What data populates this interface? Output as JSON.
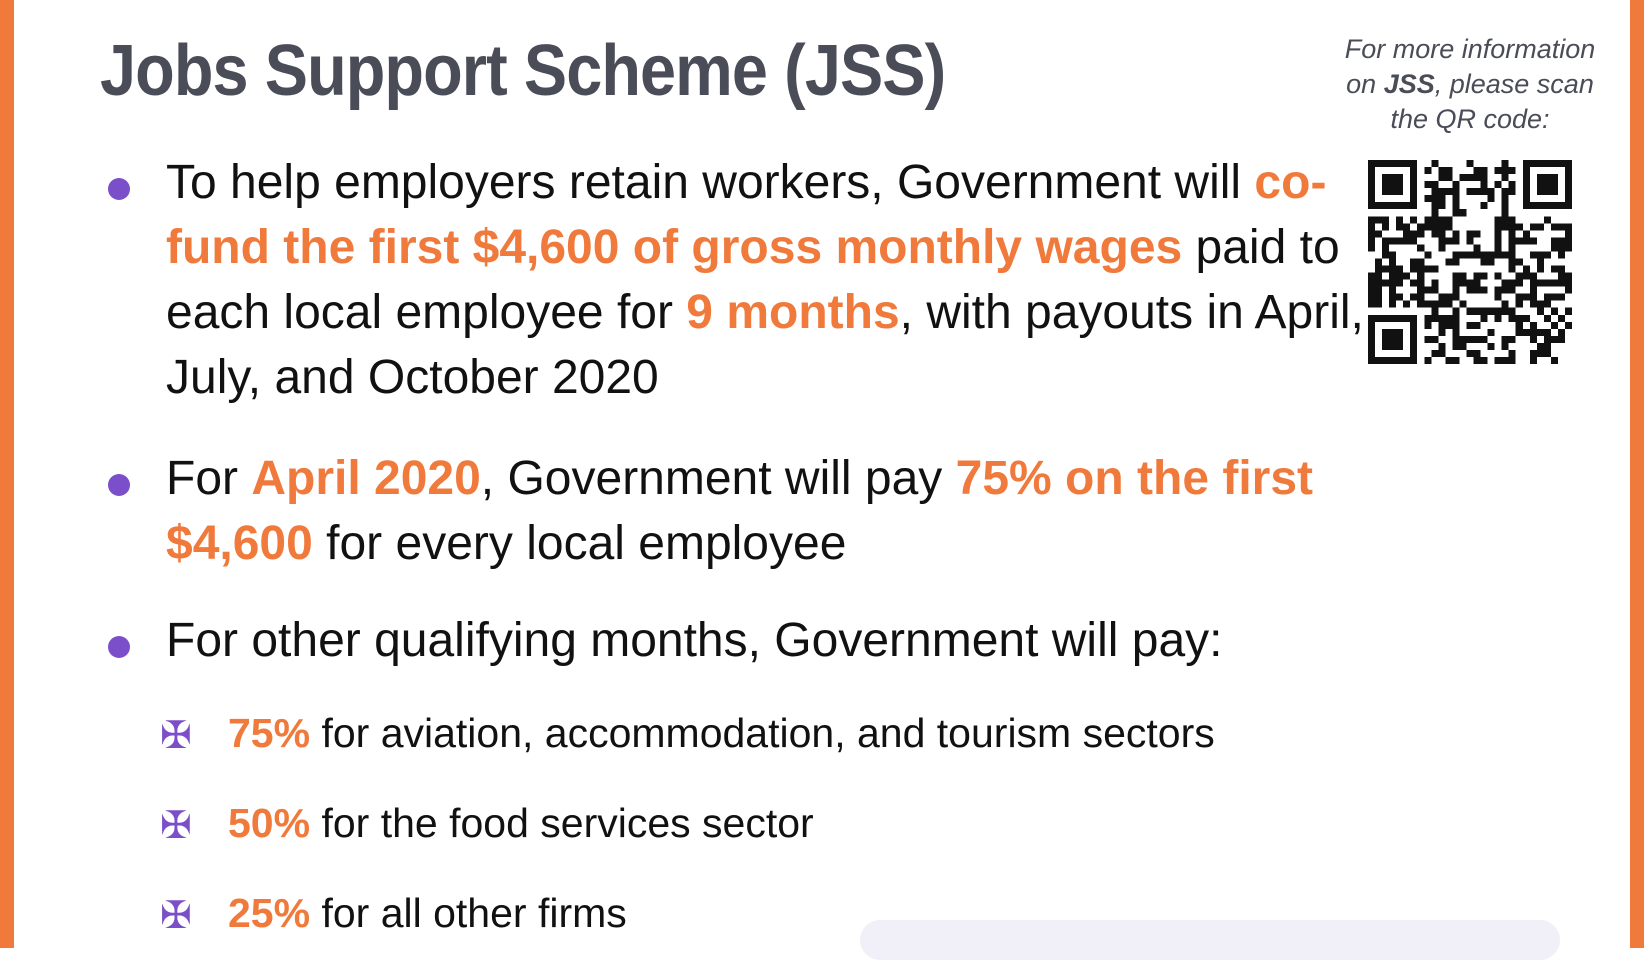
{
  "title": "Jobs Support Scheme (JSS)",
  "qr_note": {
    "line1": "For more information",
    "line2_pre": "on ",
    "line2_bold": "JSS",
    "line2_post": ", please scan",
    "line3": "the QR code:"
  },
  "bullets": [
    {
      "parts": [
        {
          "text": "To help employers retain workers, Government will ",
          "highlight": false
        },
        {
          "text": "co-fund the first $4,600 of gross monthly wages",
          "highlight": true
        },
        {
          "text": " paid to each local employee for ",
          "highlight": false
        },
        {
          "text": "9 months",
          "highlight": true
        },
        {
          "text": ", with payouts in April, July, and October 2020",
          "highlight": false
        }
      ]
    },
    {
      "parts": [
        {
          "text": "For ",
          "highlight": false
        },
        {
          "text": "April 2020",
          "highlight": true
        },
        {
          "text": ", Government will pay ",
          "highlight": false
        },
        {
          "text": "75% on the first $4,600",
          "highlight": true
        },
        {
          "text": " for every local employee",
          "highlight": false
        }
      ]
    },
    {
      "parts": [
        {
          "text": "For other qualifying months, Government will pay:",
          "highlight": false
        }
      ]
    }
  ],
  "sub_items": [
    {
      "pct": "75%",
      "rest": " for aviation, accommodation, and tourism sectors"
    },
    {
      "pct": "50%",
      "rest": " for the food services sector"
    },
    {
      "pct": "25%",
      "rest": " for all other firms"
    }
  ],
  "icons": {
    "bullet": "purple-dot",
    "sub_bullet": "club-symbol",
    "qr": "qr-code"
  },
  "colors": {
    "accent": "#f07a3c",
    "bullet": "#7b4fc9",
    "title": "#4a4c57"
  }
}
